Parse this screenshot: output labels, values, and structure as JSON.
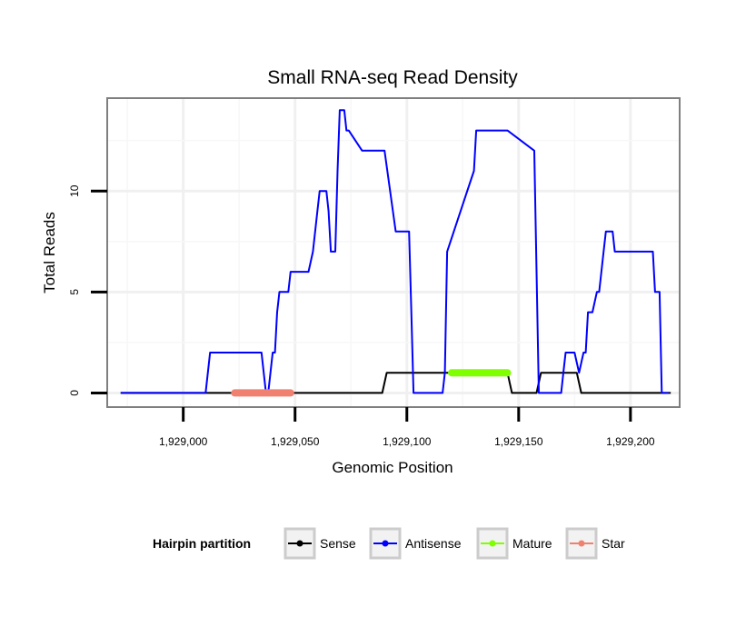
{
  "chart_data": {
    "type": "line",
    "title": "Small RNA-seq Read Density",
    "xlabel": "Genomic Position",
    "ylabel": "Total Reads",
    "xlim": [
      1928966,
      1929222
    ],
    "ylim": [
      -0.7,
      14.6
    ],
    "x_ticks": [
      {
        "value": 1929000,
        "label": "1,929,000"
      },
      {
        "value": 1929050,
        "label": "1,929,050"
      },
      {
        "value": 1929100,
        "label": "1,929,100"
      },
      {
        "value": 1929150,
        "label": "1,929,150"
      },
      {
        "value": 1929200,
        "label": "1,929,200"
      }
    ],
    "y_ticks": [
      {
        "value": 0,
        "label": "0"
      },
      {
        "value": 5,
        "label": "5"
      },
      {
        "value": 10,
        "label": "10"
      }
    ],
    "grid": true,
    "legend_position": "bottom",
    "legend_title": "Hairpin partition",
    "series": [
      {
        "name": "Sense",
        "color": "#000000",
        "x": [
          1928972,
          1929089,
          1929091,
          1929145,
          1929147,
          1929158,
          1929160,
          1929176,
          1929178,
          1929218
        ],
        "y": [
          0,
          0,
          1,
          1,
          0,
          0,
          1,
          1,
          0,
          0
        ]
      },
      {
        "name": "Antisense",
        "color": "#0000ff",
        "x": [
          1928972,
          1929010,
          1929012,
          1929035,
          1929037,
          1929038,
          1929040,
          1929041,
          1929042,
          1929043,
          1929044,
          1929046,
          1929047,
          1929048,
          1929052,
          1929053,
          1929055,
          1929056,
          1929058,
          1929060,
          1929061,
          1929063,
          1929064,
          1929065,
          1929066,
          1929067,
          1929068,
          1929069,
          1929070,
          1929071,
          1929072,
          1929073,
          1929074,
          1929080,
          1929081,
          1929082,
          1929086,
          1929087,
          1929090,
          1929095,
          1929096,
          1929097,
          1929098,
          1929101,
          1929102,
          1929103,
          1929116,
          1929117,
          1929118,
          1929130,
          1929131,
          1929132,
          1929142,
          1929145,
          1929157,
          1929159,
          1929167,
          1929168,
          1929169,
          1929170,
          1929171,
          1929174,
          1929175,
          1929177,
          1929179,
          1929180,
          1929181,
          1929183,
          1929185,
          1929186,
          1929188,
          1929189,
          1929190,
          1929192,
          1929193,
          1929194,
          1929196,
          1929197,
          1929210,
          1929211,
          1929212,
          1929213,
          1929214,
          1929217
        ],
        "y": [
          0,
          0,
          2,
          2,
          0,
          0,
          2,
          2,
          4,
          5,
          5,
          5,
          5,
          6,
          6,
          6,
          6,
          6,
          7,
          9,
          10,
          10,
          10,
          9,
          7,
          7,
          7,
          11,
          14,
          14,
          14,
          13,
          13,
          12,
          12,
          12,
          12,
          12,
          12,
          8,
          8,
          8,
          8,
          8,
          4,
          0,
          0,
          1,
          7,
          11,
          13,
          13,
          13,
          13,
          12,
          0,
          0,
          0,
          0,
          1,
          2,
          2,
          2,
          1,
          2,
          2,
          4,
          4,
          5,
          5,
          7,
          8,
          8,
          8,
          7,
          7,
          7,
          7,
          7,
          5,
          5,
          5,
          0,
          0
        ]
      },
      {
        "name": "Mature",
        "color": "#7fff00",
        "x": [
          1929120,
          1929145
        ],
        "y": [
          1,
          1
        ]
      },
      {
        "name": "Star",
        "color": "#f08070",
        "x": [
          1929023,
          1929048
        ],
        "y": [
          0,
          0
        ]
      }
    ]
  }
}
